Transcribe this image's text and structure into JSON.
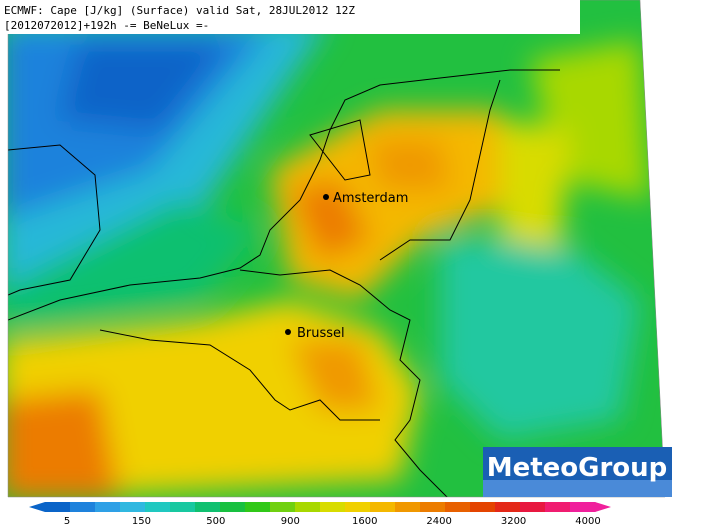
{
  "header": {
    "line1": "ECMWF: Cape [J/kg] (Surface) valid Sat, 28JUL2012 12Z",
    "line2": "[2012072012]+192h -= BeNeLux =-"
  },
  "cities": [
    {
      "name": "Amsterdam"
    },
    {
      "name": "Brussel"
    }
  ],
  "logo": "MeteoGroup",
  "colorbar": {
    "ticks": [
      5,
      150,
      500,
      900,
      1600,
      2400,
      3200,
      4000
    ],
    "colors": [
      "#0a64c8",
      "#1e82dc",
      "#2ea0e6",
      "#30b8e0",
      "#20c8c0",
      "#18c8a0",
      "#10c070",
      "#18c040",
      "#30c818",
      "#70d010",
      "#a8d800",
      "#d8dc00",
      "#f0d000",
      "#f4b800",
      "#f09800",
      "#ec7c00",
      "#e86000",
      "#e44400",
      "#e42818",
      "#e81840",
      "#f01c70",
      "#f0209c"
    ]
  }
}
